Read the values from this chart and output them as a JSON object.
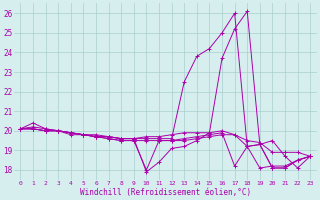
{
  "xlabel": "Windchill (Refroidissement éolien,°C)",
  "bg_color": "#d6eeee",
  "grid_color": "#aacfcf",
  "line_color": "#aa00aa",
  "xlim": [
    -0.5,
    23.5
  ],
  "ylim": [
    17.5,
    26.5
  ],
  "yticks": [
    18,
    19,
    20,
    21,
    22,
    23,
    24,
    25,
    26
  ],
  "xticks": [
    0,
    1,
    2,
    3,
    4,
    5,
    6,
    7,
    8,
    9,
    10,
    11,
    12,
    13,
    14,
    15,
    16,
    17,
    18,
    19,
    20,
    21,
    22,
    23
  ],
  "lines": [
    [
      20.1,
      20.4,
      20.1,
      20.0,
      19.9,
      19.8,
      19.7,
      19.7,
      19.6,
      19.6,
      17.9,
      18.4,
      19.1,
      19.2,
      19.5,
      19.9,
      23.7,
      25.2,
      26.1,
      19.3,
      18.1,
      18.1,
      18.5,
      18.7
    ],
    [
      20.1,
      20.1,
      20.0,
      20.0,
      19.9,
      19.8,
      19.7,
      19.6,
      19.5,
      19.5,
      19.5,
      19.5,
      19.5,
      19.5,
      19.6,
      19.7,
      19.8,
      19.8,
      19.5,
      19.4,
      18.9,
      18.9,
      18.9,
      18.7
    ],
    [
      20.1,
      20.1,
      20.0,
      20.0,
      19.9,
      19.8,
      19.8,
      19.7,
      19.6,
      19.6,
      19.6,
      19.6,
      19.6,
      22.5,
      23.8,
      24.2,
      25.0,
      26.0,
      19.2,
      19.3,
      19.5,
      18.7,
      18.1,
      18.7
    ],
    [
      20.1,
      20.1,
      20.0,
      20.0,
      19.8,
      19.8,
      19.7,
      19.7,
      19.6,
      19.6,
      19.7,
      19.7,
      19.8,
      19.9,
      19.9,
      19.9,
      20.0,
      19.8,
      19.2,
      18.1,
      18.2,
      18.2,
      18.5,
      18.7
    ],
    [
      20.1,
      20.2,
      20.1,
      20.0,
      19.9,
      19.8,
      19.7,
      19.6,
      19.5,
      19.5,
      18.0,
      19.5,
      19.5,
      19.6,
      19.7,
      19.8,
      19.9,
      18.2,
      19.2,
      19.3,
      18.1,
      18.1,
      18.5,
      18.7
    ]
  ]
}
